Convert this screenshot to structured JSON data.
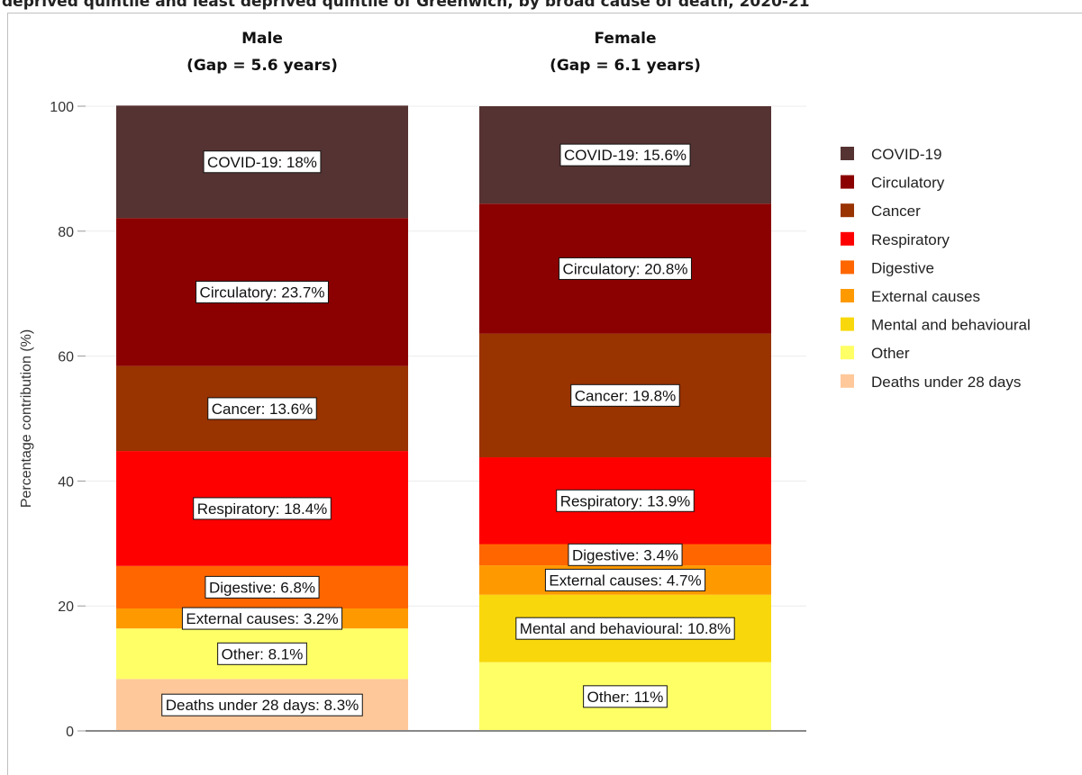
{
  "page": {
    "title": "deprived quintile and least deprived quintile of Greenwich, by broad cause of death, 2020-21"
  },
  "colors": {
    "COVID-19": "#553332",
    "Circulatory": "#8b0000",
    "Cancer": "#993300",
    "Respiratory": "#ff0000",
    "Digestive": "#ff6600",
    "External causes": "#ff9900",
    "Mental and behavioural": "#f8d80c",
    "Other": "#ffff66",
    "Deaths under 28 days": "#ffc89a"
  },
  "chart_data": {
    "type": "bar",
    "stacked": true,
    "ylabel": "Percentage contribution (%)",
    "ylim": [
      0,
      100
    ],
    "yticks": [
      0,
      20,
      40,
      60,
      80,
      100
    ],
    "grid": true,
    "legend_position": "right",
    "legend": [
      "COVID-19",
      "Circulatory",
      "Cancer",
      "Respiratory",
      "Digestive",
      "External causes",
      "Mental and behavioural",
      "Other",
      "Deaths under 28 days"
    ],
    "panels": [
      {
        "title_line1": "Male",
        "title_line2": "(Gap = 5.6 years)",
        "segments": [
          {
            "cause": "Deaths under 28 days",
            "value": 8.3,
            "label": "Deaths under 28 days: 8.3%"
          },
          {
            "cause": "Other",
            "value": 8.1,
            "label": "Other: 8.1%"
          },
          {
            "cause": "External causes",
            "value": 3.2,
            "label": "External causes: 3.2%"
          },
          {
            "cause": "Digestive",
            "value": 6.8,
            "label": "Digestive: 6.8%"
          },
          {
            "cause": "Respiratory",
            "value": 18.4,
            "label": "Respiratory: 18.4%"
          },
          {
            "cause": "Cancer",
            "value": 13.6,
            "label": "Cancer: 13.6%"
          },
          {
            "cause": "Circulatory",
            "value": 23.7,
            "label": "Circulatory: 23.7%"
          },
          {
            "cause": "COVID-19",
            "value": 18,
            "label": "COVID-19: 18%"
          }
        ]
      },
      {
        "title_line1": "Female",
        "title_line2": "(Gap = 6.1 years)",
        "segments": [
          {
            "cause": "Other",
            "value": 11,
            "label": "Other: 11%"
          },
          {
            "cause": "Mental and behavioural",
            "value": 10.8,
            "label": "Mental and behavioural: 10.8%"
          },
          {
            "cause": "External causes",
            "value": 4.7,
            "label": "External causes: 4.7%"
          },
          {
            "cause": "Digestive",
            "value": 3.4,
            "label": "Digestive: 3.4%"
          },
          {
            "cause": "Respiratory",
            "value": 13.9,
            "label": "Respiratory: 13.9%"
          },
          {
            "cause": "Cancer",
            "value": 19.8,
            "label": "Cancer: 19.8%"
          },
          {
            "cause": "Circulatory",
            "value": 20.8,
            "label": "Circulatory: 20.8%"
          },
          {
            "cause": "COVID-19",
            "value": 15.6,
            "label": "COVID-19: 15.6%"
          }
        ]
      }
    ]
  }
}
